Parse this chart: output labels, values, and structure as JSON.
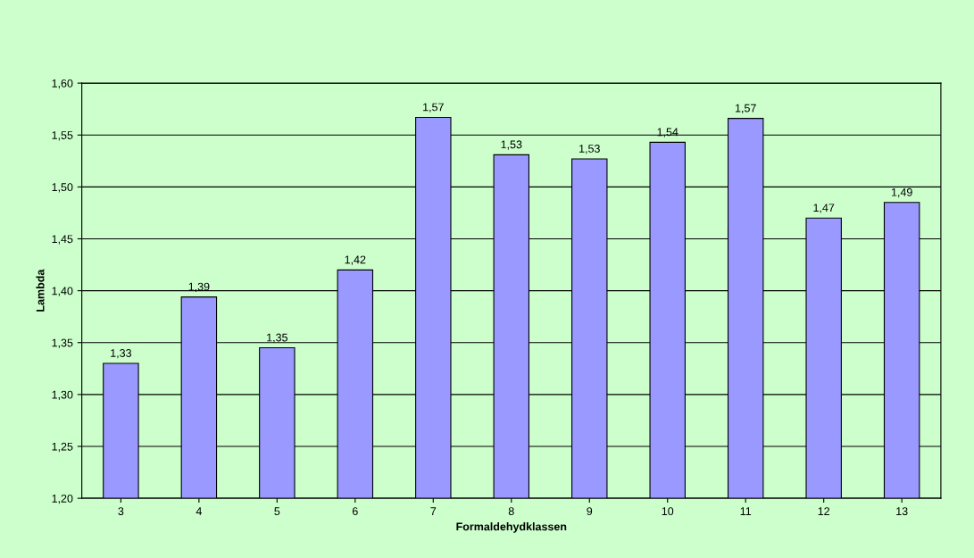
{
  "chart_data": {
    "type": "bar",
    "categories": [
      "3",
      "4",
      "5",
      "6",
      "7",
      "8",
      "9",
      "10",
      "11",
      "12",
      "13"
    ],
    "values": [
      1.33,
      1.394,
      1.345,
      1.42,
      1.567,
      1.531,
      1.527,
      1.543,
      1.566,
      1.47,
      1.485
    ],
    "value_labels": [
      "1,33",
      "1,39",
      "1,35",
      "1,42",
      "1,57",
      "1,53",
      "1,53",
      "1,54",
      "1,57",
      "1,47",
      "1,49"
    ],
    "color": "#9999ff",
    "xlabel": "Formaldehydklassen",
    "ylabel": "Lambda",
    "ylim": [
      1.2,
      1.6
    ],
    "yticks": [
      {
        "value": 1.2,
        "label": "1,20"
      },
      {
        "value": 1.25,
        "label": "1,25"
      },
      {
        "value": 1.3,
        "label": "1,30"
      },
      {
        "value": 1.35,
        "label": "1,35"
      },
      {
        "value": 1.4,
        "label": "1,40"
      },
      {
        "value": 1.45,
        "label": "1,45"
      },
      {
        "value": 1.5,
        "label": "1,50"
      },
      {
        "value": 1.55,
        "label": "1,55"
      },
      {
        "value": 1.6,
        "label": "1,60"
      }
    ],
    "grid": "y",
    "legend": false
  }
}
